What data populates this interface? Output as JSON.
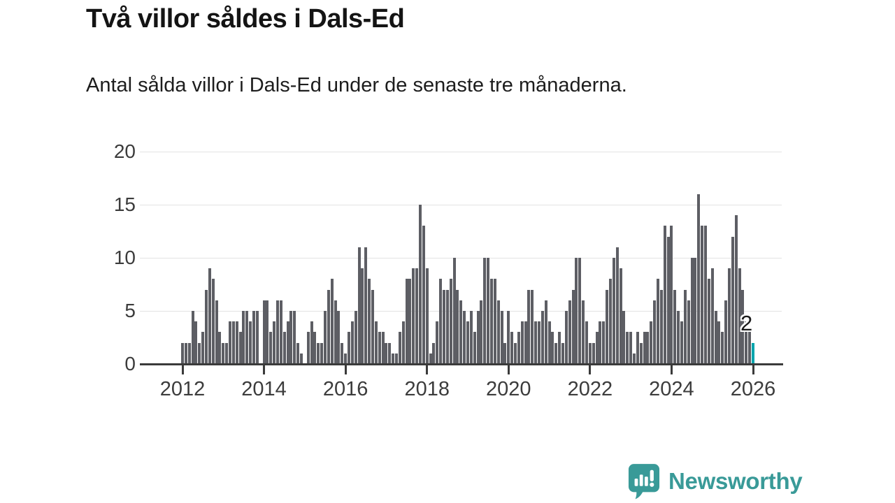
{
  "header": {
    "title": "Två villor såldes i Dals-Ed",
    "subtitle": "Antal sålda villor i Dals-Ed under de senaste tre månaderna."
  },
  "chart_data": {
    "type": "bar",
    "title": "Två villor såldes i Dals-Ed",
    "subtitle": "Antal sålda villor i Dals-Ed under de senaste tre månaderna.",
    "ylabel": "",
    "xlabel": "",
    "ylim": [
      0,
      20
    ],
    "y_ticks": [
      0,
      5,
      10,
      15,
      20
    ],
    "grid": "horizontal",
    "x_start_year": 2012,
    "x_tick_labels": [
      "2012",
      "2014",
      "2016",
      "2018",
      "2020",
      "2022",
      "2024",
      "2026"
    ],
    "x_tick_interval_months": 24,
    "bar_color": "#5d5e64",
    "highlight_color": "#00a5ad",
    "values": [
      2,
      2,
      2,
      5,
      4,
      2,
      3,
      7,
      9,
      8,
      6,
      3,
      2,
      2,
      4,
      4,
      4,
      3,
      5,
      5,
      4,
      5,
      5,
      0,
      6,
      6,
      3,
      4,
      6,
      6,
      3,
      4,
      5,
      5,
      2,
      1,
      0,
      3,
      4,
      3,
      2,
      2,
      5,
      7,
      8,
      6,
      5,
      2,
      1,
      3,
      4,
      5,
      11,
      9,
      11,
      8,
      7,
      4,
      3,
      3,
      2,
      2,
      1,
      1,
      3,
      4,
      8,
      8,
      9,
      9,
      15,
      13,
      9,
      1,
      2,
      4,
      8,
      7,
      7,
      8,
      10,
      7,
      6,
      5,
      4,
      5,
      3,
      5,
      6,
      10,
      10,
      8,
      8,
      6,
      5,
      2,
      5,
      3,
      2,
      3,
      4,
      4,
      7,
      7,
      4,
      4,
      5,
      6,
      4,
      3,
      2,
      3,
      2,
      5,
      6,
      7,
      10,
      10,
      6,
      4,
      2,
      2,
      3,
      4,
      4,
      7,
      8,
      10,
      11,
      9,
      5,
      3,
      3,
      1,
      3,
      2,
      3,
      3,
      4,
      6,
      8,
      7,
      13,
      12,
      13,
      7,
      5,
      4,
      7,
      6,
      10,
      10,
      16,
      13,
      13,
      8,
      9,
      5,
      4,
      3,
      6,
      9,
      12,
      14,
      9,
      7,
      4,
      3,
      2
    ],
    "highlight": {
      "index_from_end": 1,
      "value": 2,
      "label": "2"
    }
  },
  "footer": {
    "brand": "Newsworthy",
    "logo_icon": "speech-bubble-bar-chart-icon",
    "brand_color": "#399a98"
  }
}
